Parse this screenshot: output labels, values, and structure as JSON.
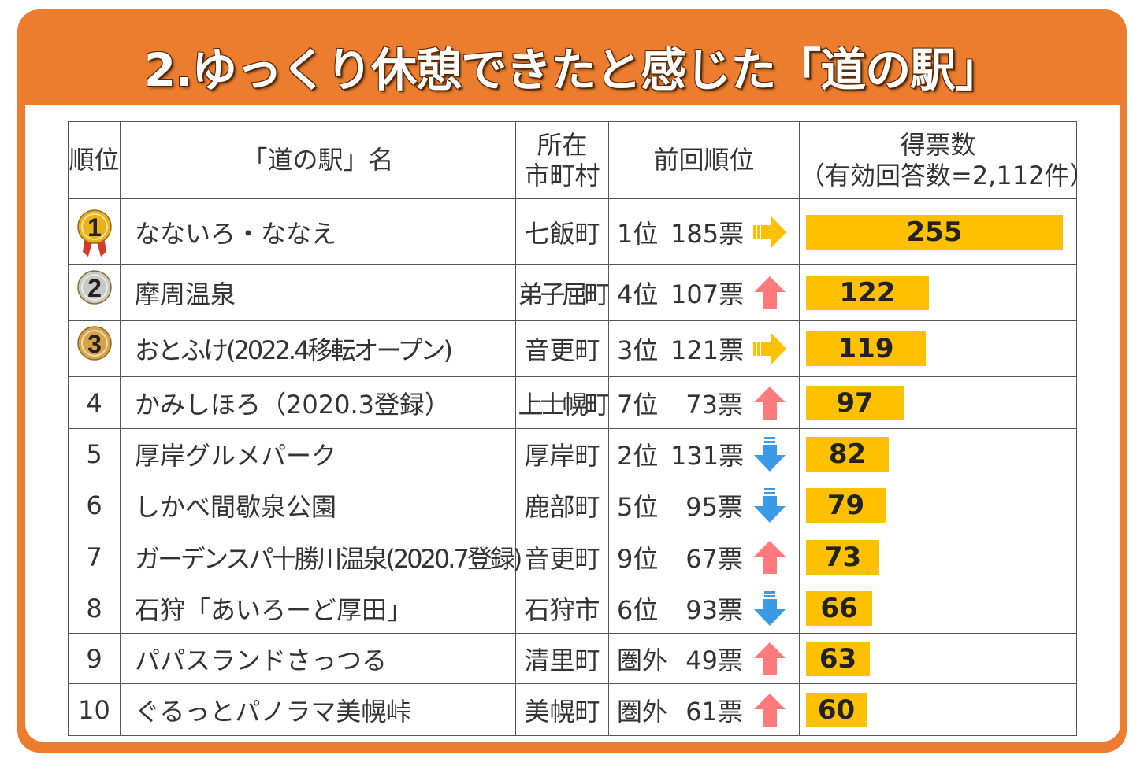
{
  "title": "2.ゆっくり休憩できたと感じた「道の駅」",
  "colors": {
    "frame": "#ec7d2f",
    "bar": "#ffc000",
    "arrow_up": "#ff7a7a",
    "arrow_down": "#3a9ae6",
    "arrow_same": "#ffc000",
    "gold": "#e7b21a",
    "silver": "#c8c8c8",
    "bronze": "#d9a24a"
  },
  "table": {
    "headers": {
      "rank": "順位",
      "name": "「道の駅」名",
      "city_line1": "所在",
      "city_line2": "市町村",
      "prev": "前回順位",
      "votes_line1": "得票数",
      "votes_line2": "（有効回答数=2,112件）"
    }
  },
  "chart_data": {
    "type": "bar",
    "title": "2.ゆっくり休憩できたと感じた「道の駅」",
    "xlabel": "",
    "ylabel": "得票数（有効回答数=2,112件）",
    "xlim": [
      0,
      255
    ],
    "categories": [
      "なないろ・ななえ",
      "摩周温泉",
      "おとふけ(2022.4移転オープン)",
      "かみしほろ（2020.3登録）",
      "厚岸グルメパーク",
      "しかべ間歇泉公園",
      "ガーデンスパ十勝川温泉(2020.7登録)",
      "石狩「あいろーど厚田」",
      "パパスランドさっつる",
      "ぐるっとパノラマ美幌峠"
    ],
    "values": [
      255,
      122,
      119,
      97,
      82,
      79,
      73,
      66,
      63,
      60
    ]
  },
  "rows": [
    {
      "rank": "1",
      "medal": "gold",
      "name": "なないろ・ななえ",
      "city": "七飯町",
      "prev_rank": "1位",
      "prev_votes": "185票",
      "trend": "same",
      "votes": "255"
    },
    {
      "rank": "2",
      "medal": "silver",
      "name": "摩周温泉",
      "city": "弟子屈町",
      "prev_rank": "4位",
      "prev_votes": "107票",
      "trend": "up",
      "votes": "122"
    },
    {
      "rank": "3",
      "medal": "bronze",
      "name": "おとふけ(2022.4移転オープン)",
      "city": "音更町",
      "prev_rank": "3位",
      "prev_votes": "121票",
      "trend": "same",
      "votes": "119"
    },
    {
      "rank": "4",
      "medal": "",
      "name": "かみしほろ（2020.3登録）",
      "city": "上士幌町",
      "prev_rank": "7位",
      "prev_votes": "73票",
      "trend": "up",
      "votes": "97"
    },
    {
      "rank": "5",
      "medal": "",
      "name": "厚岸グルメパーク",
      "city": "厚岸町",
      "prev_rank": "2位",
      "prev_votes": "131票",
      "trend": "down",
      "votes": "82"
    },
    {
      "rank": "6",
      "medal": "",
      "name": "しかべ間歇泉公園",
      "city": "鹿部町",
      "prev_rank": "5位",
      "prev_votes": "95票",
      "trend": "down",
      "votes": "79"
    },
    {
      "rank": "7",
      "medal": "",
      "name": "ガーデンスパ十勝川温泉(2020.7登録)",
      "city": "音更町",
      "prev_rank": "9位",
      "prev_votes": "67票",
      "trend": "up",
      "votes": "73"
    },
    {
      "rank": "8",
      "medal": "",
      "name": "石狩「あいろーど厚田」",
      "city": "石狩市",
      "prev_rank": "6位",
      "prev_votes": "93票",
      "trend": "down",
      "votes": "66"
    },
    {
      "rank": "9",
      "medal": "",
      "name": "パパスランドさっつる",
      "city": "清里町",
      "prev_rank": "圏外",
      "prev_votes": "49票",
      "trend": "up",
      "votes": "63"
    },
    {
      "rank": "10",
      "medal": "",
      "name": "ぐるっとパノラマ美幌峠",
      "city": "美幌町",
      "prev_rank": "圏外",
      "prev_votes": "61票",
      "trend": "up",
      "votes": "60"
    }
  ]
}
